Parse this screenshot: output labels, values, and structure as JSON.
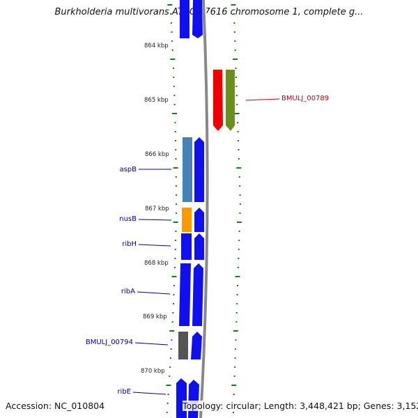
{
  "title": "Burkholderia multivorans ATCC 17616 chromosome 1, complete g...",
  "accession": "Accession: NC_010804",
  "topology": "Topology: circular; Length: 3,448,421 bp; Genes: 3,152",
  "colors": {
    "blue": "#1010ee",
    "steelblue": "#4682b4",
    "orange": "#ff9900",
    "gray": "#555555",
    "red": "#ee0000",
    "olive": "#6b8e23",
    "tick": "#1a7a1a",
    "labelBlue": "#00008b",
    "labelRed": "#cc0000",
    "backbone": "#888888"
  },
  "scale_labels": [
    "864 kbp",
    "865 kbp",
    "866 kbp",
    "867 kbp",
    "868 kbp",
    "869 kbp",
    "870 kbp"
  ],
  "gene_labels": [
    {
      "text": "aspB",
      "color": "labelBlue"
    },
    {
      "text": "nusB",
      "color": "labelBlue"
    },
    {
      "text": "ribH",
      "color": "labelBlue"
    },
    {
      "text": "ribA",
      "color": "labelBlue"
    },
    {
      "text": "BMULJ_00794",
      "color": "labelBlue"
    },
    {
      "text": "ribE",
      "color": "labelBlue"
    },
    {
      "text": "BMULJ_00789",
      "color": "labelRed"
    }
  ]
}
